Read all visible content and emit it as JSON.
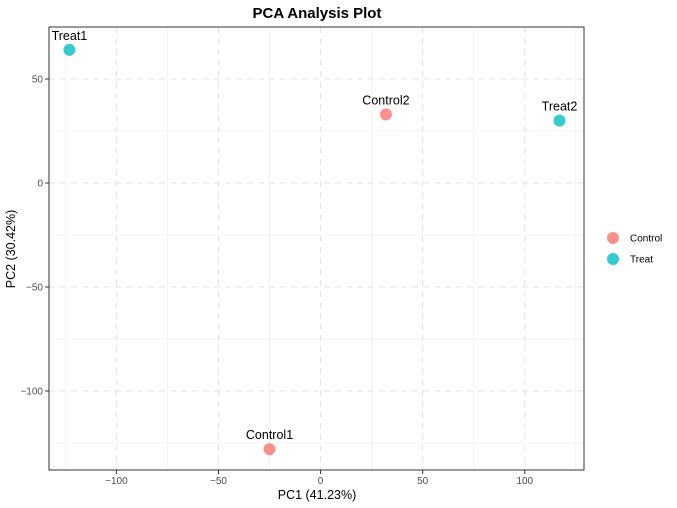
{
  "chart_data": {
    "type": "scatter",
    "title": "PCA Analysis Plot",
    "xlabel": "PC1 (41.23%)",
    "ylabel": "PC2 (30.42%)",
    "xlim": [
      -133,
      129
    ],
    "ylim": [
      -138,
      75
    ],
    "xticks": [
      -100,
      -50,
      0,
      50,
      100
    ],
    "yticks": [
      -100,
      -50,
      0,
      50
    ],
    "xtick_labels": [
      "−100",
      "−50",
      "0",
      "50",
      "100"
    ],
    "ytick_labels": [
      "−100",
      "−50",
      "0",
      "50"
    ],
    "grid": true,
    "legend_position": "right",
    "series": [
      {
        "name": "Control",
        "color": "#F8766D",
        "points": [
          {
            "label": "Control1",
            "x": -25,
            "y": -128
          },
          {
            "label": "Control2",
            "x": 32,
            "y": 33
          }
        ]
      },
      {
        "name": "Treat",
        "color": "#00BFC4",
        "points": [
          {
            "label": "Treat1",
            "x": -123,
            "y": 64
          },
          {
            "label": "Treat2",
            "x": 117,
            "y": 30
          }
        ]
      }
    ]
  }
}
